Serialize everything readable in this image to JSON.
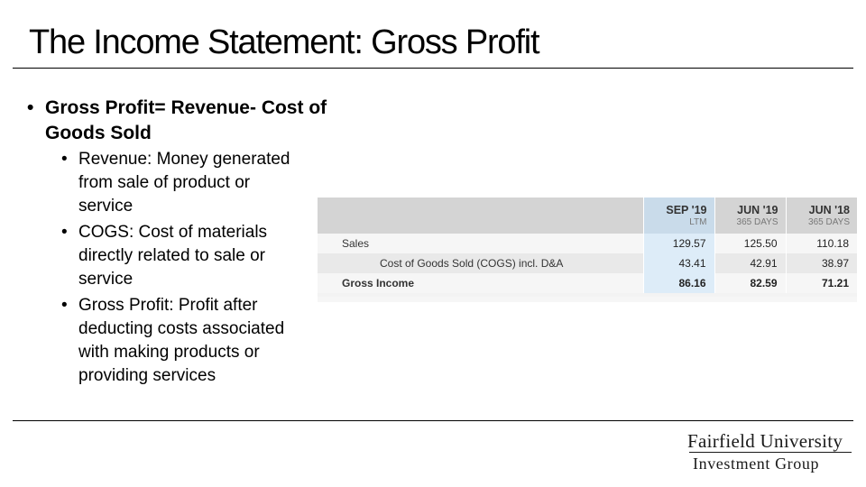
{
  "title": "The Income Statement: Gross Profit",
  "bullets": {
    "main": "Gross Profit= Revenue- Cost of Goods Sold",
    "sub": [
      "Revenue: Money generated from sale of product or service",
      "COGS: Cost of materials directly related to sale or service",
      "Gross Profit: Profit after deducting costs associated with making products or providing services"
    ]
  },
  "table": {
    "columns": [
      {
        "period": "SEP '19",
        "basis": "LTM"
      },
      {
        "period": "JUN '19",
        "basis": "365 DAYS"
      },
      {
        "period": "JUN '18",
        "basis": "365 DAYS"
      }
    ],
    "rows": [
      {
        "label": "Sales",
        "values": [
          "129.57",
          "125.50",
          "110.18"
        ]
      },
      {
        "label": "Cost of Goods Sold (COGS) incl. D&A",
        "values": [
          "43.41",
          "42.91",
          "38.97"
        ]
      },
      {
        "label": "Gross Income",
        "values": [
          "86.16",
          "82.59",
          "71.21"
        ]
      }
    ]
  },
  "logo": {
    "line1": "Fairfield University",
    "line2": "Investment Group"
  }
}
